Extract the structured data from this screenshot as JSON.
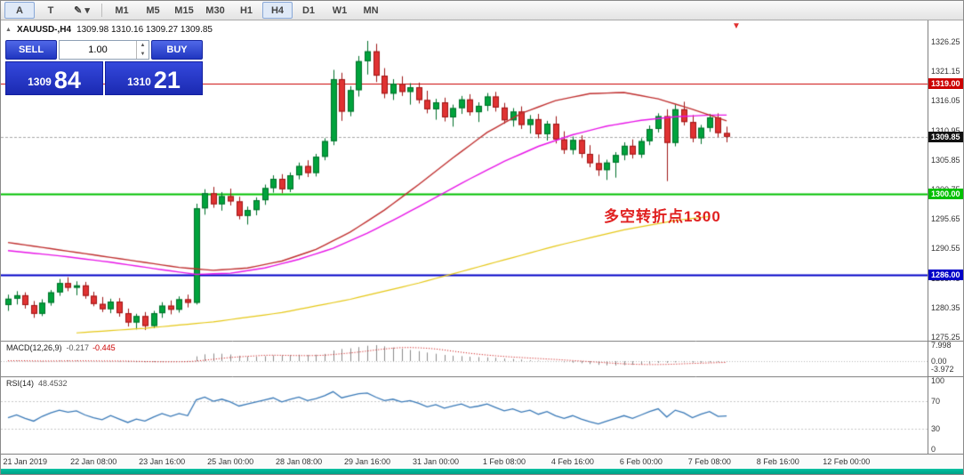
{
  "toolbar": {
    "tools": [
      {
        "name": "cursor-tool",
        "label": "A",
        "pressed": true
      },
      {
        "name": "text-tool",
        "label": "T",
        "pressed": false
      },
      {
        "name": "draw-tool",
        "label": "✎ ▾",
        "pressed": false
      }
    ],
    "timeframes": [
      "M1",
      "M5",
      "M15",
      "M30",
      "H1",
      "H4",
      "D1",
      "W1",
      "MN"
    ],
    "active_timeframe": "H4"
  },
  "symbol_line": {
    "collapse_icon": "▲",
    "symbol": "XAUUSD-,H4",
    "ohlc": "1309.98 1310.16 1309.27 1309.85"
  },
  "trade_panel": {
    "sell_label": "SELL",
    "buy_label": "BUY",
    "volume": "1.00",
    "spin_up": "▲",
    "spin_down": "▼",
    "sell_price_small": "1309",
    "sell_price_big": "84",
    "buy_price_small": "1310",
    "buy_price_big": "21"
  },
  "annotation": {
    "text": "多空转折点1300",
    "color": "#E02020"
  },
  "marker": {
    "glyph": "▼",
    "color": "#E03030"
  },
  "chart_data": {
    "type": "candlestick+indicators",
    "symbol": "XAUUSD-,H4",
    "price_range": [
      1274.7,
      1329.9
    ],
    "colors": {
      "up": "#00A33C",
      "up_border": "#00702A",
      "down": "#E03232",
      "down_border": "#9E1616",
      "ma_slow": "#C03030",
      "ma_mid": "#E816E8",
      "ma_long": "#E6C817",
      "rsi_line": "#3A7AB8",
      "macd_hist": "#8C8C8C",
      "macd_signal": "#CC0000",
      "bid_line": "#A8A8A8",
      "current_badge": "#111111"
    },
    "price_axis": {
      "ticks": [
        "1326.25",
        "1321.15",
        "1316.05",
        "1310.95",
        "1305.85",
        "1300.75",
        "1295.65",
        "1290.55",
        "1285.45",
        "1280.35",
        "1275.25"
      ]
    },
    "levels": [
      {
        "price": 1319.0,
        "label": "1319.00",
        "color": "#CC0000",
        "width": 1.2
      },
      {
        "price": 1309.85,
        "label": "1309.85",
        "color": "#A8A8A8",
        "width": 1,
        "current": true
      },
      {
        "price": 1300.0,
        "label": "1300.00",
        "color": "#00C000",
        "width": 1.8
      },
      {
        "price": 1286.0,
        "label": "1286.00",
        "color": "#0000C8",
        "width": 1.8
      }
    ],
    "candles": [
      [
        1280.8,
        1282.6,
        1279.8,
        1281.9
      ],
      [
        1281.9,
        1283.2,
        1280.9,
        1282.5
      ],
      [
        1282.5,
        1283.0,
        1280.2,
        1280.8
      ],
      [
        1280.8,
        1281.5,
        1278.6,
        1279.3
      ],
      [
        1279.3,
        1281.8,
        1278.9,
        1281.2
      ],
      [
        1281.2,
        1283.4,
        1280.7,
        1283.0
      ],
      [
        1283.0,
        1285.3,
        1282.4,
        1284.6
      ],
      [
        1284.6,
        1285.6,
        1283.2,
        1283.8
      ],
      [
        1283.8,
        1284.9,
        1282.5,
        1284.2
      ],
      [
        1284.2,
        1284.8,
        1281.9,
        1282.4
      ],
      [
        1282.4,
        1283.1,
        1280.6,
        1281.0
      ],
      [
        1281.0,
        1282.2,
        1279.6,
        1280.1
      ],
      [
        1280.1,
        1281.9,
        1279.4,
        1281.4
      ],
      [
        1281.4,
        1282.0,
        1278.8,
        1279.4
      ],
      [
        1279.4,
        1280.2,
        1277.1,
        1277.8
      ],
      [
        1277.8,
        1279.3,
        1276.6,
        1278.9
      ],
      [
        1278.9,
        1279.6,
        1276.5,
        1277.2
      ],
      [
        1277.2,
        1279.8,
        1276.8,
        1279.4
      ],
      [
        1279.4,
        1281.3,
        1278.6,
        1280.7
      ],
      [
        1280.7,
        1281.6,
        1279.2,
        1280.0
      ],
      [
        1280.0,
        1282.3,
        1279.5,
        1281.8
      ],
      [
        1281.8,
        1282.6,
        1280.4,
        1281.2
      ],
      [
        1281.2,
        1298.3,
        1280.9,
        1297.5
      ],
      [
        1297.5,
        1300.8,
        1296.4,
        1300.1
      ],
      [
        1300.1,
        1301.2,
        1297.6,
        1298.2
      ],
      [
        1298.2,
        1300.3,
        1297.1,
        1299.6
      ],
      [
        1299.6,
        1300.9,
        1298.0,
        1298.7
      ],
      [
        1298.7,
        1299.5,
        1295.6,
        1296.2
      ],
      [
        1296.2,
        1297.8,
        1294.7,
        1297.2
      ],
      [
        1297.2,
        1299.4,
        1296.3,
        1298.9
      ],
      [
        1298.9,
        1301.6,
        1298.1,
        1301.0
      ],
      [
        1301.0,
        1303.2,
        1300.2,
        1302.6
      ],
      [
        1302.6,
        1303.4,
        1300.1,
        1300.8
      ],
      [
        1300.8,
        1303.7,
        1300.3,
        1303.2
      ],
      [
        1303.2,
        1305.4,
        1302.5,
        1304.8
      ],
      [
        1304.8,
        1305.8,
        1302.9,
        1303.6
      ],
      [
        1303.6,
        1306.9,
        1303.0,
        1306.4
      ],
      [
        1306.4,
        1309.6,
        1305.8,
        1309.1
      ],
      [
        1309.1,
        1321.4,
        1308.4,
        1319.8
      ],
      [
        1319.8,
        1320.9,
        1312.6,
        1314.2
      ],
      [
        1314.2,
        1318.6,
        1313.4,
        1317.9
      ],
      [
        1317.9,
        1323.8,
        1316.8,
        1322.9
      ],
      [
        1322.9,
        1326.4,
        1320.6,
        1324.6
      ],
      [
        1324.6,
        1325.9,
        1319.3,
        1320.4
      ],
      [
        1320.4,
        1321.7,
        1316.5,
        1317.3
      ],
      [
        1317.3,
        1319.8,
        1316.2,
        1319.0
      ],
      [
        1319.0,
        1320.3,
        1316.9,
        1317.6
      ],
      [
        1317.6,
        1319.1,
        1315.4,
        1318.4
      ],
      [
        1318.4,
        1319.2,
        1315.6,
        1316.2
      ],
      [
        1316.2,
        1317.8,
        1313.9,
        1314.6
      ],
      [
        1314.6,
        1316.4,
        1312.8,
        1315.8
      ],
      [
        1315.8,
        1316.6,
        1312.5,
        1313.2
      ],
      [
        1313.2,
        1315.4,
        1311.6,
        1314.8
      ],
      [
        1314.8,
        1316.9,
        1313.8,
        1316.3
      ],
      [
        1316.3,
        1317.2,
        1313.5,
        1314.1
      ],
      [
        1314.1,
        1315.8,
        1312.4,
        1315.2
      ],
      [
        1315.2,
        1317.4,
        1314.3,
        1316.8
      ],
      [
        1316.8,
        1317.6,
        1314.2,
        1314.9
      ],
      [
        1314.9,
        1315.7,
        1312.1,
        1312.7
      ],
      [
        1312.7,
        1314.8,
        1311.6,
        1314.2
      ],
      [
        1314.2,
        1315.1,
        1311.2,
        1311.9
      ],
      [
        1311.9,
        1313.6,
        1310.4,
        1312.9
      ],
      [
        1312.9,
        1313.8,
        1309.6,
        1310.3
      ],
      [
        1310.3,
        1312.6,
        1309.2,
        1312.1
      ],
      [
        1312.1,
        1313.4,
        1308.7,
        1309.4
      ],
      [
        1309.4,
        1310.8,
        1306.9,
        1307.6
      ],
      [
        1307.6,
        1309.9,
        1306.8,
        1309.3
      ],
      [
        1309.3,
        1310.1,
        1306.2,
        1306.9
      ],
      [
        1306.9,
        1308.4,
        1304.6,
        1305.3
      ],
      [
        1305.3,
        1306.8,
        1303.1,
        1304.1
      ],
      [
        1304.1,
        1305.9,
        1302.4,
        1305.4
      ],
      [
        1305.4,
        1307.2,
        1302.8,
        1306.7
      ],
      [
        1306.7,
        1308.9,
        1305.8,
        1308.3
      ],
      [
        1308.3,
        1309.4,
        1306.1,
        1306.8
      ],
      [
        1306.8,
        1309.6,
        1306.2,
        1309.1
      ],
      [
        1309.1,
        1311.8,
        1308.4,
        1311.2
      ],
      [
        1311.2,
        1313.9,
        1310.6,
        1313.4
      ],
      [
        1313.4,
        1314.6,
        1302.2,
        1308.8
      ],
      [
        1308.8,
        1315.4,
        1308.2,
        1314.6
      ],
      [
        1314.6,
        1315.9,
        1311.8,
        1312.4
      ],
      [
        1312.4,
        1313.6,
        1308.9,
        1309.6
      ],
      [
        1309.6,
        1311.9,
        1308.6,
        1311.4
      ],
      [
        1311.4,
        1313.8,
        1310.7,
        1313.2
      ],
      [
        1313.2,
        1313.9,
        1309.8,
        1310.5
      ],
      [
        1310.5,
        1311.6,
        1308.9,
        1309.85
      ]
    ],
    "ma": [
      {
        "name": "ma-long-yellow",
        "color": "#E6C817",
        "width": 1.2,
        "points": [
          [
            8,
            1276.0
          ],
          [
            16,
            1276.8
          ],
          [
            24,
            1277.9
          ],
          [
            32,
            1279.5
          ],
          [
            40,
            1281.8
          ],
          [
            48,
            1284.6
          ],
          [
            56,
            1287.8
          ],
          [
            64,
            1291.0
          ],
          [
            72,
            1293.8
          ],
          [
            78,
            1295.4
          ],
          [
            82,
            1296.1
          ]
        ]
      },
      {
        "name": "ma-mid-magenta",
        "color": "#E816E8",
        "width": 1.4,
        "points": [
          [
            0,
            1290.2
          ],
          [
            6,
            1289.3
          ],
          [
            12,
            1288.2
          ],
          [
            18,
            1286.9
          ],
          [
            22,
            1286.1
          ],
          [
            26,
            1286.3
          ],
          [
            30,
            1287.2
          ],
          [
            34,
            1288.7
          ],
          [
            38,
            1290.6
          ],
          [
            42,
            1293.2
          ],
          [
            46,
            1296.2
          ],
          [
            50,
            1299.4
          ],
          [
            54,
            1302.6
          ],
          [
            58,
            1305.6
          ],
          [
            62,
            1308.2
          ],
          [
            66,
            1310.2
          ],
          [
            70,
            1311.7
          ],
          [
            74,
            1312.7
          ],
          [
            78,
            1313.3
          ],
          [
            82,
            1313.6
          ],
          [
            84,
            1313.6
          ]
        ]
      },
      {
        "name": "ma-slow-red",
        "color": "#C03030",
        "width": 1.4,
        "points": [
          [
            0,
            1291.6
          ],
          [
            8,
            1289.9
          ],
          [
            14,
            1288.6
          ],
          [
            20,
            1287.3
          ],
          [
            24,
            1286.8
          ],
          [
            28,
            1287.2
          ],
          [
            32,
            1288.4
          ],
          [
            36,
            1290.4
          ],
          [
            40,
            1293.4
          ],
          [
            44,
            1297.2
          ],
          [
            48,
            1301.6
          ],
          [
            52,
            1306.2
          ],
          [
            56,
            1310.6
          ],
          [
            60,
            1313.9
          ],
          [
            64,
            1316.1
          ],
          [
            68,
            1317.3
          ],
          [
            72,
            1317.5
          ],
          [
            76,
            1316.4
          ],
          [
            80,
            1314.6
          ],
          [
            84,
            1312.6
          ]
        ]
      }
    ],
    "macd": {
      "name": "MACD(12,26,9)",
      "value_main": "-0.217",
      "value_signal": "-0.445",
      "axis": [
        {
          "label": "7.998",
          "value": 7.998
        },
        {
          "label": "0.00",
          "value": 0
        },
        {
          "label": "-3.972",
          "value": -3.972
        }
      ],
      "hist": [
        0.15,
        0.25,
        0.1,
        -0.1,
        -0.2,
        0.05,
        0.3,
        0.35,
        0.3,
        0.15,
        -0.05,
        -0.25,
        -0.3,
        -0.25,
        -0.45,
        -0.5,
        -0.55,
        -0.4,
        -0.2,
        -0.1,
        0,
        0.1,
        2.4,
        3.4,
        3.8,
        3.7,
        3.3,
        2.7,
        2.3,
        2.2,
        2.5,
        2.9,
        2.9,
        3.0,
        3.2,
        3.1,
        3.2,
        3.6,
        5.3,
        6.1,
        6.4,
        7.0,
        7.7,
        8.0,
        7.4,
        6.8,
        6.2,
        5.6,
        5.0,
        4.3,
        3.7,
        3.1,
        2.7,
        2.5,
        2.2,
        2.0,
        1.9,
        1.7,
        1.3,
        1.1,
        0.8,
        0.5,
        0.25,
        0.1,
        -0.15,
        -0.55,
        -0.75,
        -1.05,
        -1.45,
        -1.85,
        -2.1,
        -2.2,
        -2.0,
        -1.85,
        -1.6,
        -1.25,
        -0.9,
        -0.85,
        -0.6,
        -0.55,
        -0.75,
        -0.8,
        -0.6,
        -0.4,
        -0.217
      ]
    },
    "rsi": {
      "name": "RSI(14)",
      "value": "48.4532",
      "axis": [
        {
          "label": "100",
          "value": 100
        },
        {
          "label": "70",
          "value": 70
        },
        {
          "label": "30",
          "value": 30
        },
        {
          "label": "0",
          "value": 0
        }
      ],
      "level_lines": [
        70,
        30
      ],
      "values": [
        46,
        50,
        45,
        41,
        48,
        53,
        57,
        54,
        56,
        50,
        46,
        43,
        49,
        44,
        39,
        44,
        41,
        47,
        52,
        48,
        52,
        49,
        72,
        76,
        70,
        73,
        69,
        63,
        66,
        69,
        72,
        75,
        69,
        73,
        76,
        71,
        74,
        78,
        84,
        75,
        78,
        81,
        82,
        76,
        71,
        73,
        69,
        71,
        67,
        62,
        65,
        60,
        63,
        66,
        61,
        63,
        66,
        61,
        56,
        59,
        54,
        57,
        51,
        55,
        49,
        45,
        49,
        44,
        40,
        37,
        41,
        45,
        49,
        45,
        50,
        55,
        59,
        47,
        57,
        53,
        46,
        51,
        55,
        48,
        48.45
      ]
    },
    "time_axis": {
      "first_index": 2,
      "index_step": 8,
      "labels": [
        "21 Jan 2019",
        "22 Jan 08:00",
        "23 Jan 16:00",
        "25 Jan 00:00",
        "28 Jan 08:00",
        "29 Jan 16:00",
        "31 Jan 00:00",
        "1 Feb 08:00",
        "4 Feb 16:00",
        "6 Feb 00:00",
        "7 Feb 08:00",
        "8 Feb 16:00",
        "12 Feb 00:00"
      ]
    }
  }
}
